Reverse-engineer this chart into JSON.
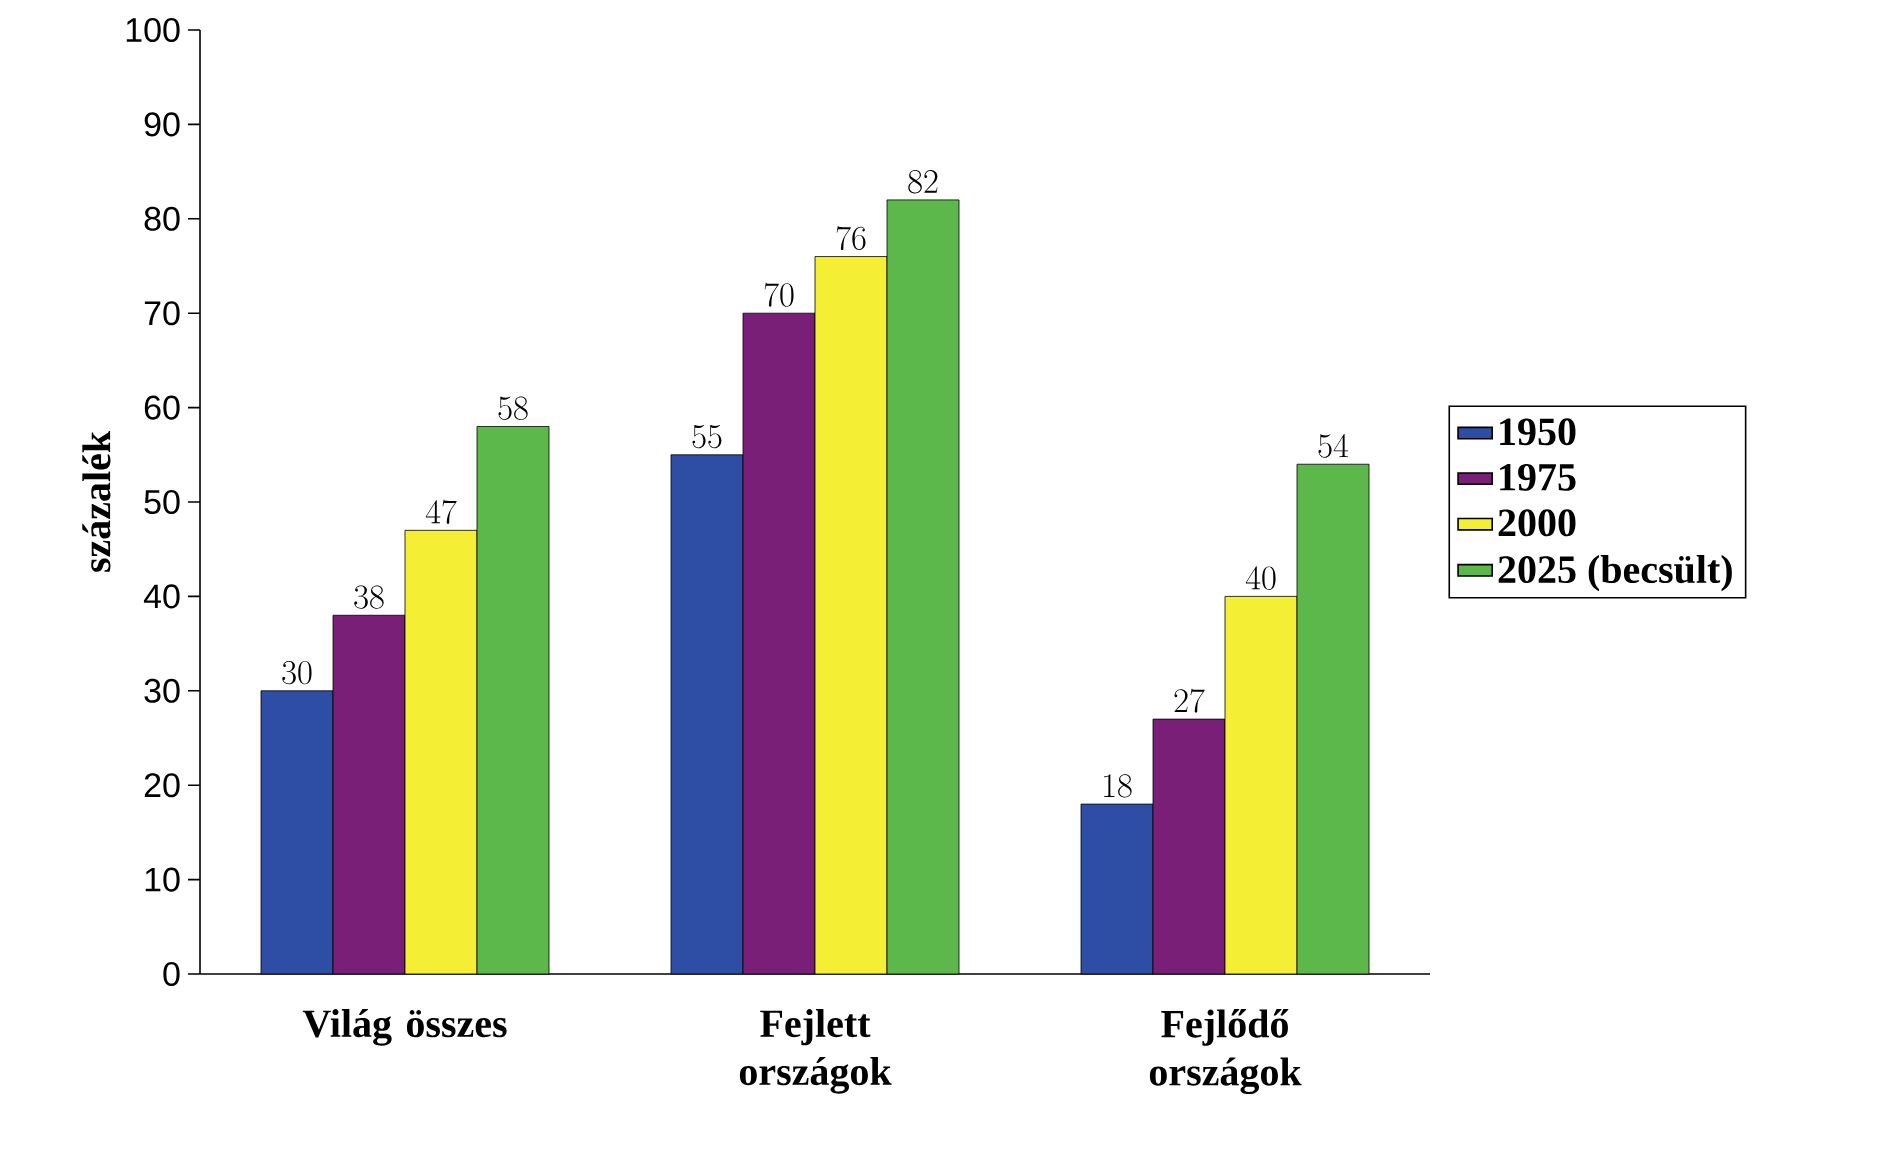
{
  "chart_data": {
    "type": "bar",
    "ylabel": "százalék",
    "categories": [
      "Világ összes",
      "Fejlett országok",
      "Fejlődő országok"
    ],
    "series": [
      {
        "name": "1950",
        "color": "#2e4ea6",
        "values": [
          30,
          55,
          18
        ]
      },
      {
        "name": "1975",
        "color": "#7a1f78",
        "values": [
          38,
          70,
          27
        ]
      },
      {
        "name": "2000",
        "color": "#f4ee34",
        "values": [
          47,
          76,
          40
        ]
      },
      {
        "name": "2025 (becsült)",
        "color": "#5cb84a",
        "values": [
          58,
          82,
          54
        ]
      }
    ],
    "ylim": [
      0,
      100
    ],
    "yticks": [
      0,
      10,
      20,
      30,
      40,
      50,
      60,
      70,
      80,
      90,
      100
    ],
    "data_labels": true,
    "legend": "right",
    "grid": false
  }
}
